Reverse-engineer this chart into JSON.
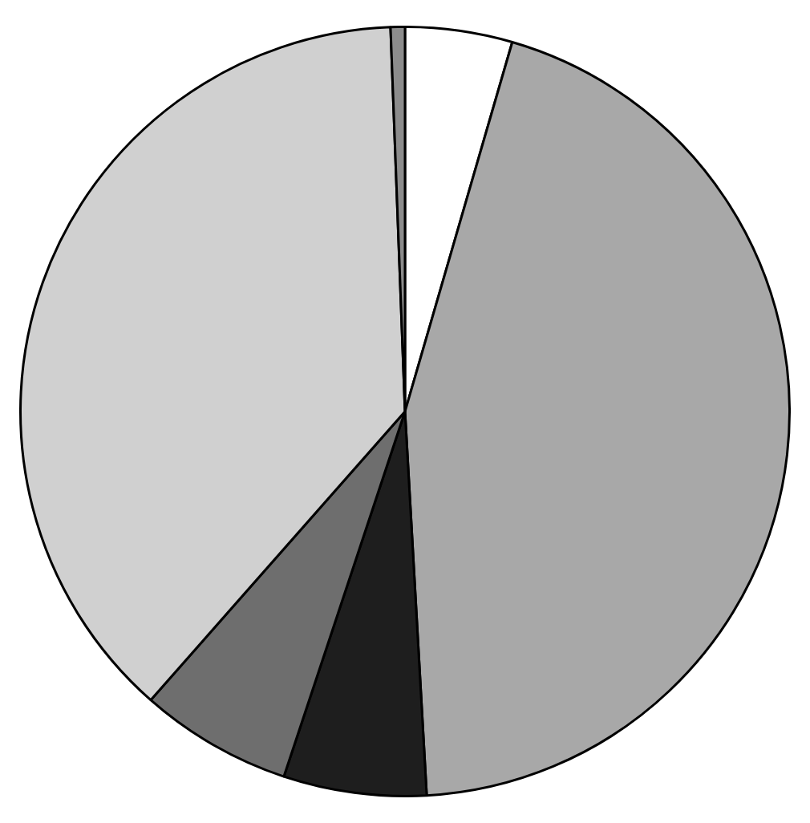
{
  "chart_data": {
    "type": "pie",
    "categories": [
      null,
      null,
      null,
      null,
      null,
      null
    ],
    "values": [
      4.5,
      44.6,
      6,
      6.4,
      37.9,
      0.6
    ],
    "colors": [
      "#ffffff",
      "#a8a8a8",
      "#1e1e1e",
      "#6e6e6e",
      "#d0d0d0",
      "#8c8c8c"
    ]
  }
}
